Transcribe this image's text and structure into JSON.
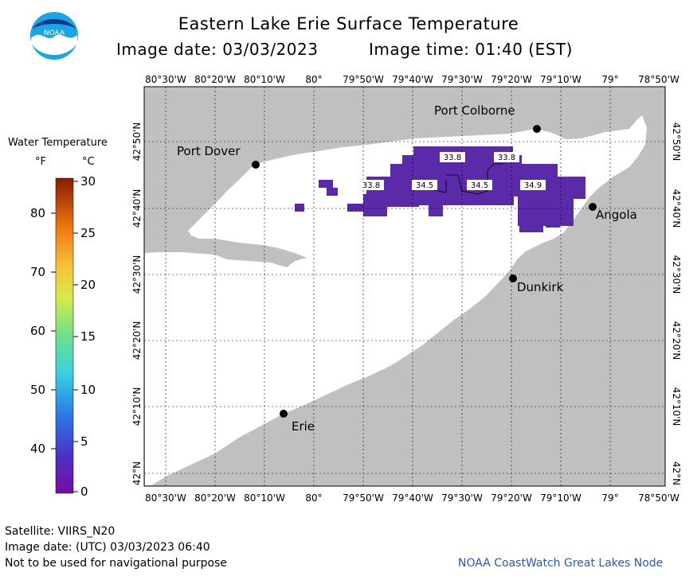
{
  "header": {
    "title": "Eastern Lake Erie Surface Temperature",
    "image_date": "Image date: 03/03/2023",
    "image_time": "Image time: 01:40 (EST)",
    "logo_text": "NOAA"
  },
  "map": {
    "lon_labels": [
      "80°30'W",
      "80°20'W",
      "80°10'W",
      "80°",
      "79°50'W",
      "79°40'W",
      "79°30'W",
      "79°20'W",
      "79°10'W",
      "79°",
      "78°50'W"
    ],
    "lat_labels": [
      "42°50'N",
      "42°40'N",
      "42°30'N",
      "42°20'N",
      "42°10'N",
      "42°N"
    ],
    "cities": [
      {
        "name": "Port Colborne"
      },
      {
        "name": "Port Dover"
      },
      {
        "name": "Angola"
      },
      {
        "name": "Dunkirk"
      },
      {
        "name": "Erie"
      }
    ],
    "temp_labels": [
      "33.8",
      "33.8",
      "33.8",
      "34.5",
      "34.5",
      "34.9"
    ],
    "colors": {
      "land": "#c0c0c0",
      "water": "#ffffff",
      "ice_sst": "#5a2aa8",
      "grid": "#000000"
    }
  },
  "legend": {
    "title": "Water Temperature",
    "unit_f": "°F",
    "unit_c": "°C",
    "fahrenheit_ticks": [
      "80",
      "70",
      "60",
      "50",
      "40"
    ],
    "celsius_ticks": [
      "30",
      "25",
      "20",
      "15",
      "10",
      "5",
      "0"
    ],
    "colors": [
      "#8b1a00",
      "#e05a00",
      "#f5a623",
      "#f0e34a",
      "#8ee04a",
      "#3fd6c8",
      "#2a8ee6",
      "#3a3acb",
      "#6a1aa8"
    ]
  },
  "footer": {
    "satellite": "Satellite: VIIRS_N20",
    "image_date_utc": "Image date: (UTC) 03/03/2023  06:40",
    "disclaimer": "Not to be used for navigational purpose",
    "credit": "NOAA CoastWatch Great Lakes Node"
  }
}
